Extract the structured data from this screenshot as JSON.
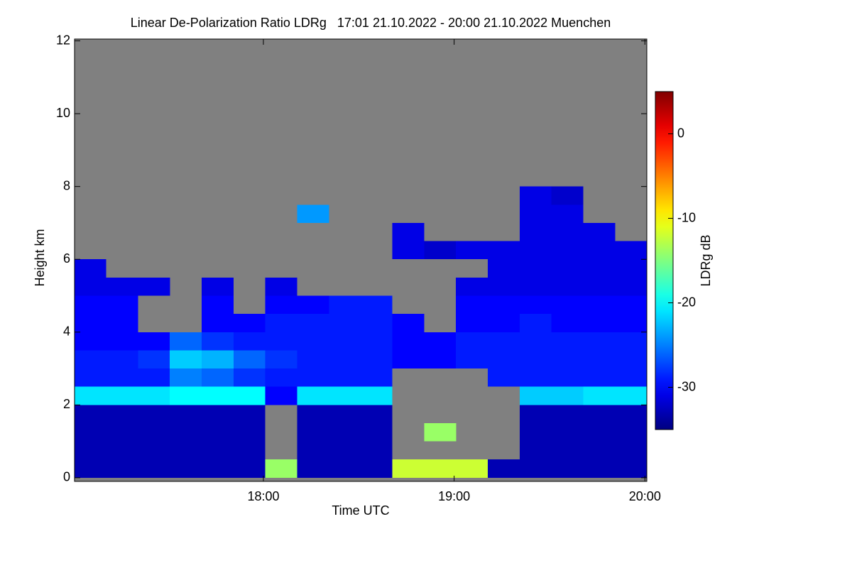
{
  "chart_data": {
    "type": "heatmap",
    "title": "Linear De-Polarization Ratio LDRg   17:01 21.10.2022 - 20:00 21.10.2022 Muenchen",
    "xlabel": "Time UTC",
    "ylabel": "Height km",
    "colorbar_label": "LDRg dB",
    "xlim": [
      17.01,
      20.01
    ],
    "xticks": [
      {
        "value": 18,
        "label": "18:00"
      },
      {
        "value": 19,
        "label": "19:00"
      },
      {
        "value": 20,
        "label": "20:00"
      }
    ],
    "ylim": [
      -0.1,
      12.05
    ],
    "yticks": [
      0,
      2,
      4,
      6,
      8,
      10,
      12
    ],
    "clim": [
      -35,
      5
    ],
    "cticks": [
      0,
      -10,
      -20,
      -30
    ],
    "colormap": "jet",
    "x": [
      17.093,
      17.26,
      17.427,
      17.593,
      17.76,
      17.927,
      18.093,
      18.26,
      18.427,
      18.593,
      18.76,
      18.927,
      19.093,
      19.26,
      19.427,
      19.593,
      19.76,
      19.927
    ],
    "y": [
      0.25,
      0.75,
      1.25,
      1.75,
      2.25,
      2.75,
      3.25,
      3.75,
      4.25,
      4.75,
      5.25,
      5.75,
      6.25,
      6.75,
      7.25,
      7.75
    ],
    "z": [
      [
        -33,
        -33,
        -33,
        -33,
        -33,
        -33,
        -14,
        -33,
        -33,
        -33,
        -12,
        -12,
        -12,
        -33,
        -33,
        -33,
        -33,
        -33
      ],
      [
        -33,
        -33,
        -33,
        -33,
        -33,
        -33,
        null,
        -33,
        -33,
        -33,
        null,
        null,
        null,
        null,
        -33,
        -33,
        -33,
        -33
      ],
      [
        -33,
        -33,
        -33,
        -33,
        -33,
        -33,
        null,
        -33,
        -33,
        -33,
        null,
        -14,
        null,
        null,
        -33,
        -33,
        -33,
        -33
      ],
      [
        -33,
        -33,
        -33,
        -33,
        -33,
        -33,
        null,
        -33,
        -33,
        -33,
        null,
        null,
        null,
        null,
        -33,
        -33,
        -33,
        -33
      ],
      [
        -21,
        -21,
        -21,
        -20,
        -20,
        -20,
        -30,
        -21,
        -21,
        -21,
        null,
        null,
        null,
        null,
        -22,
        -22,
        -21,
        -21
      ],
      [
        -29,
        -29,
        -29,
        -25,
        -26,
        -28,
        -29,
        -29,
        -29,
        -29,
        null,
        null,
        null,
        -29,
        -29,
        -29,
        -29,
        -29
      ],
      [
        -29,
        -29,
        -28,
        -22,
        -23,
        -26,
        -28,
        -29,
        -29,
        -29,
        -30,
        -30,
        -29,
        -29,
        -29,
        -29,
        -29,
        -29
      ],
      [
        -30,
        -30,
        -30,
        -26,
        -28,
        -29,
        -29,
        -29,
        -29,
        -29,
        -30,
        -30,
        -29,
        -29,
        -29,
        -29,
        -29,
        -29
      ],
      [
        -30,
        -30,
        null,
        null,
        -30,
        -30,
        -29,
        -29,
        -29,
        -29,
        -30,
        null,
        -30,
        -30,
        -29,
        -30,
        -30,
        -30
      ],
      [
        -30,
        -30,
        null,
        null,
        -30,
        null,
        -30,
        -30,
        -29,
        -29,
        null,
        null,
        -30,
        -30,
        -30,
        -30,
        -30,
        -30
      ],
      [
        -31,
        -31,
        -31,
        null,
        -31,
        null,
        -31,
        null,
        null,
        null,
        null,
        null,
        -31,
        -31,
        -31,
        -31,
        -31,
        -31
      ],
      [
        -31,
        null,
        null,
        null,
        null,
        null,
        null,
        null,
        null,
        null,
        null,
        null,
        null,
        -31,
        -31,
        -31,
        -31,
        -31
      ],
      [
        null,
        null,
        null,
        null,
        null,
        null,
        null,
        null,
        null,
        null,
        -31,
        -32,
        -31,
        -31,
        -31,
        -31,
        -31,
        -31
      ],
      [
        null,
        null,
        null,
        null,
        null,
        null,
        null,
        null,
        null,
        null,
        -31,
        null,
        null,
        null,
        -31,
        -31,
        -31,
        null
      ],
      [
        null,
        null,
        null,
        null,
        null,
        null,
        null,
        -24,
        null,
        null,
        null,
        null,
        null,
        null,
        -31,
        -31,
        null,
        null
      ],
      [
        null,
        null,
        null,
        null,
        null,
        null,
        null,
        null,
        null,
        null,
        null,
        null,
        null,
        null,
        -31,
        -32,
        null,
        null
      ]
    ]
  }
}
